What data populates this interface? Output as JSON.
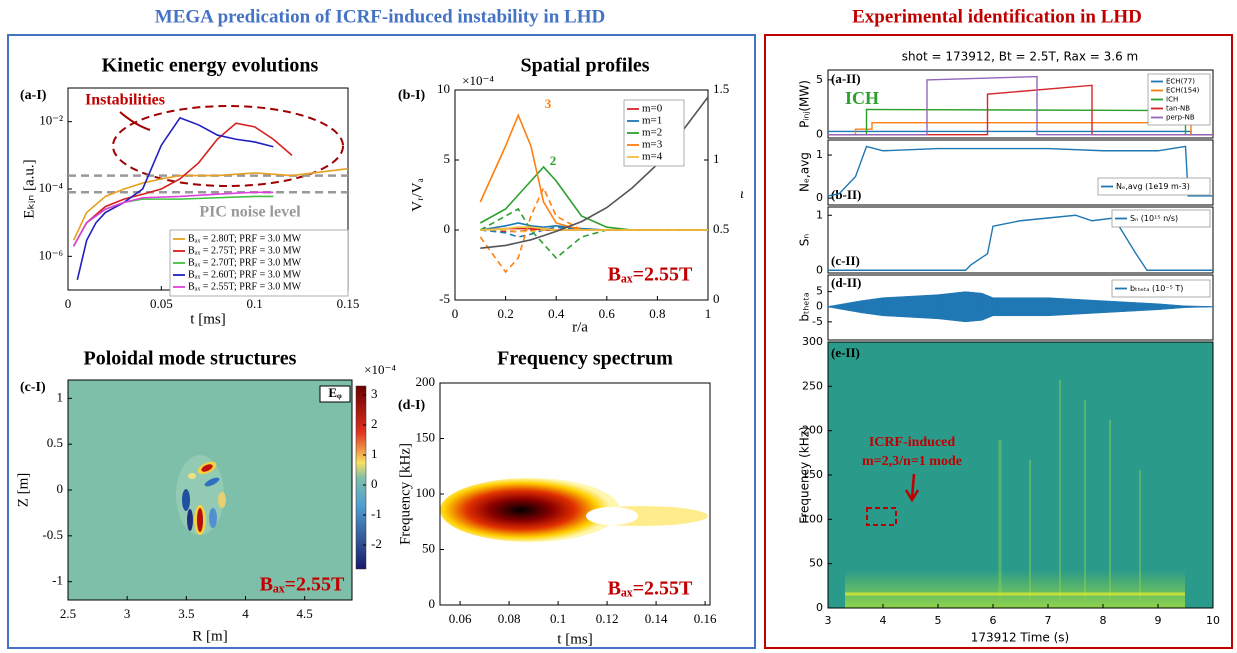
{
  "headers": {
    "left": "MEGA predication of ICRF-induced instability in LHD",
    "right": "Experimental identification in LHD"
  },
  "chart_data": [
    {
      "type": "line",
      "panel_label": "(a-I)",
      "title": "Kinetic energy evolutions",
      "xlabel": "t [ms]",
      "ylabel": "Eₖᵢₙ [a.u.]",
      "log_y": true,
      "xlim": [
        0,
        0.15
      ],
      "xticks": [
        0,
        0.05,
        0.1,
        0.15
      ],
      "ylim": [
        1e-07,
        0.1
      ],
      "yticks": [
        {
          "value": 1e-06,
          "label": "10⁻⁶"
        },
        {
          "value": 0.0001,
          "label": "10⁻⁴"
        },
        {
          "value": 0.01,
          "label": "10⁻²"
        }
      ],
      "reference_lines": [
        0.00025,
        8e-05
      ],
      "reference_color": "#999999",
      "annotations": [
        "Instabilities",
        "PIC noise level"
      ],
      "series": [
        {
          "name": "Bₐₓ = 2.80T; PRF = 3.0 MW",
          "color": "#e8a020",
          "x": [
            0.003,
            0.01,
            0.02,
            0.03,
            0.04,
            0.05,
            0.06,
            0.08,
            0.1,
            0.12,
            0.15
          ],
          "values": [
            3e-06,
            2e-05,
            6e-05,
            0.0001,
            0.00015,
            0.0002,
            0.00025,
            0.00025,
            0.0003,
            0.00025,
            0.0004
          ]
        },
        {
          "name": "Bₐₓ = 2.75T; PRF = 3.0 MW",
          "color": "#d62020",
          "x": [
            0.003,
            0.01,
            0.02,
            0.03,
            0.04,
            0.05,
            0.06,
            0.07,
            0.08,
            0.09,
            0.1,
            0.11,
            0.12
          ],
          "values": [
            2e-06,
            1e-05,
            3e-05,
            5e-05,
            7e-05,
            0.0001,
            0.0002,
            0.0006,
            0.003,
            0.009,
            0.007,
            0.003,
            0.001
          ]
        },
        {
          "name": "Bₐₓ = 2.70T; PRF = 3.0 MW",
          "color": "#40c040",
          "x": [
            0.003,
            0.01,
            0.02,
            0.03,
            0.04,
            0.06,
            0.08,
            0.1,
            0.11
          ],
          "values": [
            2e-06,
            1e-05,
            2.5e-05,
            4e-05,
            5e-05,
            5e-05,
            5.5e-05,
            6e-05,
            6e-05
          ]
        },
        {
          "name": "Bₐₓ = 2.60T; PRF = 3.0 MW",
          "color": "#2020c0",
          "x": [
            0.005,
            0.01,
            0.015,
            0.02,
            0.03,
            0.04,
            0.05,
            0.06,
            0.07,
            0.08,
            0.09,
            0.1,
            0.11
          ],
          "values": [
            2e-07,
            3e-06,
            1e-05,
            2e-05,
            4e-05,
            0.0001,
            0.002,
            0.013,
            0.008,
            0.004,
            0.003,
            0.0025,
            0.0018
          ]
        },
        {
          "name": "Bₐₓ = 2.55T; PRF = 3.0 MW",
          "color": "#e040e0",
          "x": [
            0.003,
            0.01,
            0.02,
            0.03,
            0.04,
            0.06,
            0.08,
            0.1,
            0.11
          ],
          "values": [
            2e-06,
            1e-05,
            2.5e-05,
            4e-05,
            5.5e-05,
            6e-05,
            7e-05,
            8e-05,
            8e-05
          ]
        }
      ]
    },
    {
      "type": "line",
      "panel_label": "(b-I)",
      "title": "Spatial profiles",
      "xlabel": "r/a",
      "ylabel": "Vᵣ/Vₐ",
      "y2label": "ι",
      "scale_label": "×10⁻⁴",
      "xlim": [
        0,
        1
      ],
      "xticks": [
        0,
        0.2,
        0.4,
        0.6,
        0.8,
        1
      ],
      "ylim": [
        -5,
        10
      ],
      "yticks": [
        -5,
        0,
        5,
        10
      ],
      "y2lim": [
        0,
        1.5
      ],
      "y2ticks": [
        0,
        0.5,
        1,
        1.5
      ],
      "annotations": [
        "3",
        "2",
        "Bₐₓ=2.55T"
      ],
      "x": [
        0.1,
        0.2,
        0.25,
        0.3,
        0.35,
        0.4,
        0.5,
        0.6,
        0.7,
        0.8,
        1.0
      ],
      "series": [
        {
          "name": "m=0",
          "color": "#d62728",
          "values": [
            0,
            0.1,
            0.1,
            0.1,
            0,
            0,
            0,
            0,
            0,
            0,
            0
          ],
          "dashed_values": [
            0,
            -0.1,
            -0.1,
            0,
            0,
            0,
            0,
            0,
            0,
            0,
            0
          ]
        },
        {
          "name": "m=1",
          "color": "#1f77b4",
          "values": [
            0,
            0.3,
            0.5,
            0.3,
            0.2,
            0.3,
            0.1,
            0,
            0,
            0,
            0
          ],
          "dashed_values": [
            0,
            -0.2,
            -0.5,
            -0.3,
            0,
            0.2,
            0,
            0,
            0,
            0,
            0
          ]
        },
        {
          "name": "m=2",
          "color": "#2ca02c",
          "values": [
            0.5,
            1.5,
            2.5,
            3.5,
            4.5,
            3.5,
            1,
            0.2,
            0,
            0,
            0
          ],
          "dashed_values": [
            0,
            1,
            1.5,
            0,
            -1,
            -2,
            -0.5,
            0,
            0,
            0,
            0
          ]
        },
        {
          "name": "m=3",
          "color": "#ff7f0e",
          "values": [
            2,
            6,
            8.2,
            6,
            2,
            0.5,
            0,
            0,
            0,
            0,
            0
          ],
          "dashed_values": [
            -0.5,
            -3,
            -2,
            1,
            3,
            1,
            0,
            0,
            0,
            0,
            0
          ]
        },
        {
          "name": "m=4",
          "color": "#f0c040",
          "values": [
            0,
            0.1,
            0.2,
            0.2,
            0.1,
            0,
            0,
            0,
            0,
            0,
            0
          ],
          "dashed_values": [
            0,
            0,
            -0.1,
            -0.1,
            0,
            0,
            0,
            0,
            0,
            0,
            0
          ]
        },
        {
          "color": "#555555",
          "axis": "y2",
          "values": [
            0.37,
            0.39,
            0.41,
            0.43,
            0.46,
            0.49,
            0.56,
            0.66,
            0.8,
            0.97,
            1.45
          ]
        }
      ]
    },
    {
      "type": "contour",
      "panel_label": "(c-I)",
      "title": "Poloidal mode structures",
      "xlabel": "R [m]",
      "ylabel": "Z [m]",
      "scale_label": "×10⁻⁴",
      "legend": "Eᵩ",
      "xlim": [
        2.5,
        4.9
      ],
      "xticks": [
        2.5,
        3,
        3.5,
        4,
        4.5
      ],
      "ylim": [
        -1.2,
        1.2
      ],
      "yticks": [
        -1,
        -0.5,
        0,
        0.5,
        1
      ],
      "clim": [
        -2.8,
        3.3
      ],
      "cticks": [
        -2,
        -1,
        0,
        1,
        2,
        3
      ],
      "annotations": [
        "Bₐₓ=2.55T"
      ]
    },
    {
      "type": "heatmap",
      "panel_label": "(d-I)",
      "title": "Frequency spectrum",
      "xlabel": "t [ms]",
      "ylabel": "Frequency [kHz]",
      "xlim": [
        0.0518,
        0.162
      ],
      "xticks": [
        0.06,
        0.08,
        0.1,
        0.12,
        0.14,
        0.16
      ],
      "ylim": [
        0,
        200
      ],
      "yticks": [
        0,
        50,
        100,
        150,
        200
      ],
      "annotations": [
        "Bₐₓ=2.55T"
      ]
    },
    {
      "type": "line",
      "panel_label": "(a-II)",
      "title": "shot = 173912, Bt = 2.5T, Rax = 3.6 m",
      "ylabel": "Pᵢₙⱼ(MW)",
      "xlim": [
        3,
        10
      ],
      "ylim": [
        -0.3,
        5.9
      ],
      "yticks": [
        0,
        5
      ],
      "annotations": [
        "ICH"
      ],
      "series": [
        {
          "name": "ECH(77)",
          "color": "#1f77b4",
          "x": [
            3,
            9.6,
            9.6,
            10
          ],
          "values": [
            0.3,
            0.3,
            0,
            0
          ]
        },
        {
          "name": "ECH(154)",
          "color": "#ff7f0e",
          "x": [
            3,
            3.5,
            3.5,
            3.8,
            3.8,
            9.6,
            9.6,
            10
          ],
          "values": [
            0,
            0,
            0.5,
            0.5,
            1.1,
            1.1,
            0,
            0
          ]
        },
        {
          "name": "ICH",
          "color": "#2ca02c",
          "x": [
            3,
            3.7,
            3.7,
            9.5,
            9.5,
            10
          ],
          "values": [
            0,
            0,
            2.3,
            2.2,
            0,
            0
          ]
        },
        {
          "name": "tan-NB",
          "color": "#d62728",
          "x": [
            3,
            5.9,
            5.9,
            7.8,
            7.8,
            10
          ],
          "values": [
            0,
            0,
            3.7,
            4.5,
            0,
            0
          ]
        },
        {
          "name": "perp-NB",
          "color": "#9467bd",
          "x": [
            3,
            4.8,
            4.8,
            6.8,
            6.8,
            10
          ],
          "values": [
            0,
            0,
            5,
            5.3,
            0,
            0
          ]
        }
      ]
    },
    {
      "type": "line",
      "panel_label": "(b-II)",
      "ylabel": "Nₑ,avg",
      "xlim": [
        3,
        10
      ],
      "ylim": [
        -0.16,
        1.35
      ],
      "yticks": [
        0,
        1
      ],
      "series": [
        {
          "name": "Nₑ,avg (1e19 m-3)",
          "color": "#1f77b4",
          "x": [
            3,
            3.2,
            3.5,
            3.7,
            4,
            5,
            6,
            7,
            8,
            8.7,
            9,
            9.5,
            9.55,
            10
          ],
          "values": [
            0.05,
            0.1,
            0.5,
            1.2,
            1.1,
            1.15,
            1.15,
            1.15,
            1.1,
            1.1,
            1.1,
            1.2,
            0.05,
            0.05
          ]
        }
      ]
    },
    {
      "type": "line",
      "panel_label": "(c-II)",
      "ylabel": "Sₙ",
      "xlim": [
        3,
        10
      ],
      "ylim": [
        -0.05,
        1.15
      ],
      "yticks": [
        0,
        1
      ],
      "series": [
        {
          "name": "Sₙ (10¹⁵ n/s)",
          "color": "#1f77b4",
          "x": [
            3,
            5.5,
            5.6,
            5.9,
            6,
            6.5,
            7,
            7.5,
            7.8,
            8.2,
            8.6,
            8.8,
            10
          ],
          "values": [
            0,
            0,
            0.1,
            0.3,
            0.8,
            0.9,
            0.95,
            1,
            0.9,
            0.95,
            0.3,
            0,
            0
          ]
        }
      ]
    },
    {
      "type": "envelope",
      "panel_label": "(d-II)",
      "ylabel": "bₜₕₑₜₐ",
      "xlim": [
        3,
        10
      ],
      "ylim": [
        -11,
        10.5
      ],
      "yticks": [
        -5,
        0,
        5
      ],
      "series": [
        {
          "name": "bₜₕₑₜₐ (10⁻⁵ T)",
          "color": "#1f77b4",
          "x": [
            3,
            3.6,
            4,
            5,
            5.5,
            5.8,
            6,
            7,
            8,
            9,
            9.5,
            10
          ],
          "values": [
            0.1,
            2,
            3,
            4,
            5,
            4.5,
            3,
            3,
            2,
            1,
            0.3,
            0.1
          ]
        }
      ]
    },
    {
      "type": "spectrogram",
      "panel_label": "(e-II)",
      "xlabel": "173912 Time (s)",
      "ylabel": "Frequency (kHz)",
      "xlim": [
        3,
        10
      ],
      "xticks": [
        3,
        4,
        5,
        6,
        7,
        8,
        9,
        10
      ],
      "ylim": [
        0,
        300
      ],
      "yticks": [
        0,
        50,
        100,
        150,
        200,
        250,
        300
      ],
      "annotations": [
        "ICRF-induced",
        "m=2,3/n=1 mode"
      ]
    }
  ]
}
